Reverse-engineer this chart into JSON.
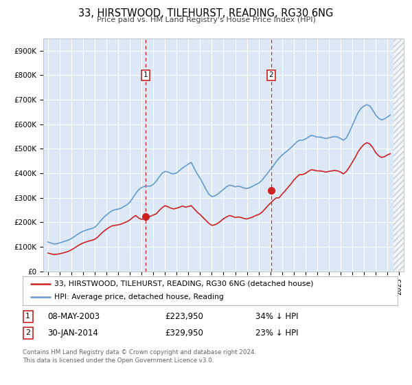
{
  "title": "33, HIRSTWOOD, TILEHURST, READING, RG30 6NG",
  "subtitle": "Price paid vs. HM Land Registry's House Price Index (HPI)",
  "footer": "Contains HM Land Registry data © Crown copyright and database right 2024.\nThis data is licensed under the Open Government Licence v3.0.",
  "legend_line1": "33, HIRSTWOOD, TILEHURST, READING, RG30 6NG (detached house)",
  "legend_line2": "HPI: Average price, detached house, Reading",
  "sale1_date": "08-MAY-2003",
  "sale1_price": "£223,950",
  "sale1_hpi": "34% ↓ HPI",
  "sale1_year": 2003.36,
  "sale1_value": 223950,
  "sale2_date": "30-JAN-2014",
  "sale2_price": "£329,950",
  "sale2_hpi": "23% ↓ HPI",
  "sale2_year": 2014.08,
  "sale2_value": 329950,
  "ylim": [
    0,
    950000
  ],
  "xlim": [
    1994.6,
    2025.4
  ],
  "background_color": "#dce8f5",
  "hpi_color": "#6699cc",
  "sale_color": "#cc2222",
  "hpi_data_x": [
    1995.0,
    1995.25,
    1995.5,
    1995.75,
    1996.0,
    1996.25,
    1996.5,
    1996.75,
    1997.0,
    1997.25,
    1997.5,
    1997.75,
    1998.0,
    1998.25,
    1998.5,
    1998.75,
    1999.0,
    1999.25,
    1999.5,
    1999.75,
    2000.0,
    2000.25,
    2000.5,
    2000.75,
    2001.0,
    2001.25,
    2001.5,
    2001.75,
    2002.0,
    2002.25,
    2002.5,
    2002.75,
    2003.0,
    2003.25,
    2003.5,
    2003.75,
    2004.0,
    2004.25,
    2004.5,
    2004.75,
    2005.0,
    2005.25,
    2005.5,
    2005.75,
    2006.0,
    2006.25,
    2006.5,
    2006.75,
    2007.0,
    2007.25,
    2007.5,
    2007.75,
    2008.0,
    2008.25,
    2008.5,
    2008.75,
    2009.0,
    2009.25,
    2009.5,
    2009.75,
    2010.0,
    2010.25,
    2010.5,
    2010.75,
    2011.0,
    2011.25,
    2011.5,
    2011.75,
    2012.0,
    2012.25,
    2012.5,
    2012.75,
    2013.0,
    2013.25,
    2013.5,
    2013.75,
    2014.0,
    2014.25,
    2014.5,
    2014.75,
    2015.0,
    2015.25,
    2015.5,
    2015.75,
    2016.0,
    2016.25,
    2016.5,
    2016.75,
    2017.0,
    2017.25,
    2017.5,
    2017.75,
    2018.0,
    2018.25,
    2018.5,
    2018.75,
    2019.0,
    2019.25,
    2019.5,
    2019.75,
    2020.0,
    2020.25,
    2020.5,
    2020.75,
    2021.0,
    2021.25,
    2021.5,
    2021.75,
    2022.0,
    2022.25,
    2022.5,
    2022.75,
    2023.0,
    2023.25,
    2023.5,
    2023.75,
    2024.0,
    2024.25
  ],
  "hpi_data_y": [
    120000,
    116000,
    112000,
    113000,
    116000,
    120000,
    124000,
    128000,
    134000,
    142000,
    150000,
    158000,
    164000,
    168000,
    172000,
    175000,
    180000,
    192000,
    206000,
    220000,
    230000,
    240000,
    248000,
    252000,
    254000,
    258000,
    265000,
    272000,
    282000,
    300000,
    318000,
    333000,
    342000,
    347000,
    348000,
    348000,
    355000,
    368000,
    385000,
    400000,
    408000,
    406000,
    400000,
    398000,
    402000,
    412000,
    422000,
    430000,
    438000,
    445000,
    420000,
    398000,
    380000,
    358000,
    335000,
    315000,
    305000,
    308000,
    315000,
    325000,
    335000,
    345000,
    352000,
    350000,
    345000,
    348000,
    345000,
    340000,
    338000,
    342000,
    348000,
    354000,
    360000,
    370000,
    385000,
    400000,
    415000,
    430000,
    448000,
    462000,
    474000,
    484000,
    494000,
    504000,
    516000,
    528000,
    535000,
    535000,
    540000,
    548000,
    555000,
    552000,
    548000,
    548000,
    545000,
    542000,
    545000,
    548000,
    550000,
    548000,
    542000,
    535000,
    545000,
    568000,
    595000,
    622000,
    648000,
    665000,
    675000,
    680000,
    675000,
    658000,
    638000,
    625000,
    618000,
    622000,
    630000,
    638000
  ],
  "prop_data_x": [
    1995.0,
    1995.25,
    1995.5,
    1995.75,
    1996.0,
    1996.25,
    1996.5,
    1996.75,
    1997.0,
    1997.25,
    1997.5,
    1997.75,
    1998.0,
    1998.25,
    1998.5,
    1998.75,
    1999.0,
    1999.25,
    1999.5,
    1999.75,
    2000.0,
    2000.25,
    2000.5,
    2000.75,
    2001.0,
    2001.25,
    2001.5,
    2001.75,
    2002.0,
    2002.25,
    2002.5,
    2002.75,
    2003.0,
    2003.25,
    2003.5,
    2003.75,
    2004.0,
    2004.25,
    2004.5,
    2004.75,
    2005.0,
    2005.25,
    2005.5,
    2005.75,
    2006.0,
    2006.25,
    2006.5,
    2006.75,
    2007.0,
    2007.25,
    2007.5,
    2007.75,
    2008.0,
    2008.25,
    2008.5,
    2008.75,
    2009.0,
    2009.25,
    2009.5,
    2009.75,
    2010.0,
    2010.25,
    2010.5,
    2010.75,
    2011.0,
    2011.25,
    2011.5,
    2011.75,
    2012.0,
    2012.25,
    2012.5,
    2012.75,
    2013.0,
    2013.25,
    2013.5,
    2013.75,
    2014.0,
    2014.25,
    2014.5,
    2014.75,
    2015.0,
    2015.25,
    2015.5,
    2015.75,
    2016.0,
    2016.25,
    2016.5,
    2016.75,
    2017.0,
    2017.25,
    2017.5,
    2017.75,
    2018.0,
    2018.25,
    2018.5,
    2018.75,
    2019.0,
    2019.25,
    2019.5,
    2019.75,
    2020.0,
    2020.25,
    2020.5,
    2020.75,
    2021.0,
    2021.25,
    2021.5,
    2021.75,
    2022.0,
    2022.25,
    2022.5,
    2022.75,
    2023.0,
    2023.25,
    2023.5,
    2023.75,
    2024.0,
    2024.25
  ],
  "prop_data_y": [
    75000,
    72000,
    69000,
    70000,
    72000,
    75000,
    78000,
    82000,
    88000,
    95000,
    103000,
    110000,
    116000,
    120000,
    124000,
    127000,
    131000,
    140000,
    152000,
    163000,
    172000,
    180000,
    186000,
    188000,
    190000,
    193000,
    198000,
    203000,
    210000,
    220000,
    228000,
    218000,
    212000,
    216000,
    220000,
    225000,
    230000,
    235000,
    248000,
    260000,
    268000,
    264000,
    258000,
    255000,
    258000,
    262000,
    267000,
    262000,
    265000,
    268000,
    255000,
    242000,
    232000,
    220000,
    208000,
    196000,
    188000,
    190000,
    196000,
    205000,
    215000,
    222000,
    228000,
    225000,
    220000,
    222000,
    220000,
    216000,
    214000,
    218000,
    222000,
    228000,
    232000,
    240000,
    252000,
    266000,
    278000,
    290000,
    300000,
    300000,
    315000,
    328000,
    342000,
    356000,
    372000,
    385000,
    395000,
    395000,
    400000,
    408000,
    415000,
    413000,
    410000,
    410000,
    408000,
    405000,
    408000,
    410000,
    412000,
    410000,
    405000,
    398000,
    408000,
    425000,
    445000,
    465000,
    488000,
    505000,
    518000,
    525000,
    520000,
    505000,
    485000,
    472000,
    465000,
    468000,
    475000,
    480000
  ],
  "yticks": [
    0,
    100000,
    200000,
    300000,
    400000,
    500000,
    600000,
    700000,
    800000,
    900000
  ],
  "ytick_labels": [
    "£0",
    "£100K",
    "£200K",
    "£300K",
    "£400K",
    "£500K",
    "£600K",
    "£700K",
    "£800K",
    "£900K"
  ],
  "xticks": [
    1995,
    1996,
    1997,
    1998,
    1999,
    2000,
    2001,
    2002,
    2003,
    2004,
    2005,
    2006,
    2007,
    2008,
    2009,
    2010,
    2011,
    2012,
    2013,
    2014,
    2015,
    2016,
    2017,
    2018,
    2019,
    2020,
    2021,
    2022,
    2023,
    2024,
    2025
  ],
  "hatch_start": 2024.5,
  "hatch_end": 2025.4
}
